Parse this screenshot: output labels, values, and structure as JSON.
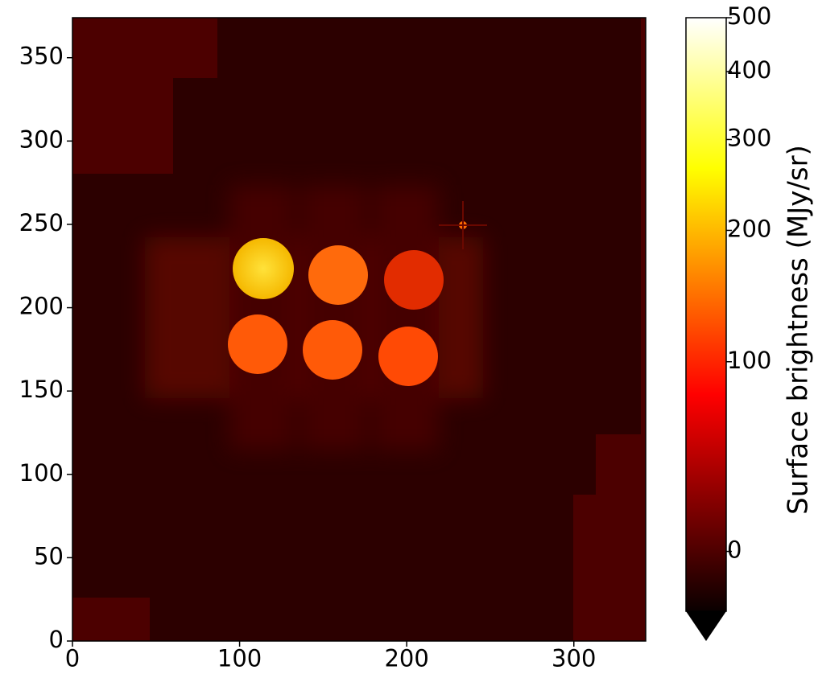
{
  "chart_data": {
    "type": "image",
    "xlim": [
      0,
      343
    ],
    "ylim": [
      0,
      374
    ],
    "xticks": [
      0,
      100,
      200,
      300
    ],
    "yticks": [
      0,
      50,
      100,
      150,
      200,
      250,
      300,
      350
    ],
    "colorbar": {
      "label": "Surface brightness (MJy/sr)",
      "lim": [
        -29,
        500
      ],
      "ticks": [
        0,
        100,
        200,
        300,
        400,
        500
      ],
      "colormap": "hot",
      "extend": "min"
    }
  }
}
